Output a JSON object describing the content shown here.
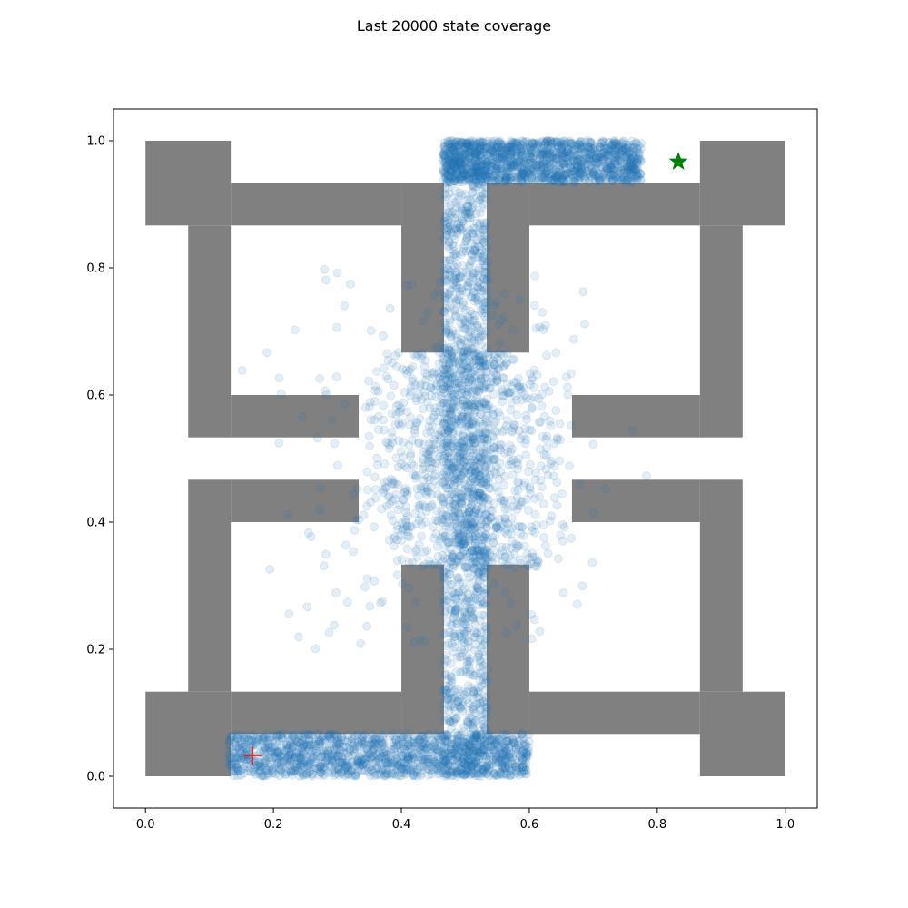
{
  "chart_data": {
    "type": "scatter",
    "title": "Last 20000 state coverage",
    "xlabel": "",
    "ylabel": "",
    "xlim": [
      -0.05,
      1.05
    ],
    "ylim": [
      -0.05,
      1.05
    ],
    "xticks": [
      "0.0",
      "0.2",
      "0.4",
      "0.6",
      "0.8",
      "1.0"
    ],
    "xtick_values": [
      0.0,
      0.2,
      0.4,
      0.6,
      0.8,
      1.0
    ],
    "yticks": [
      "0.0",
      "0.2",
      "0.4",
      "0.6",
      "0.8",
      "1.0"
    ],
    "ytick_values": [
      0.0,
      0.2,
      0.4,
      0.6,
      0.8,
      1.0
    ],
    "grid": false,
    "colors": {
      "walls": "#808080",
      "points": "#1f77b4",
      "goal_marker": "#008000",
      "start_marker": "#d62728"
    },
    "walls": [
      {
        "x0": 0.0,
        "x1": 0.1333,
        "y0": 0.8667,
        "y1": 1.0
      },
      {
        "x0": 0.1333,
        "x1": 0.4,
        "y0": 0.8667,
        "y1": 0.9333
      },
      {
        "x0": 0.0667,
        "x1": 0.1333,
        "y0": 0.5333,
        "y1": 0.8667
      },
      {
        "x0": 0.1333,
        "x1": 0.3333,
        "y0": 0.5333,
        "y1": 0.6
      },
      {
        "x0": 0.4,
        "x1": 0.4667,
        "y0": 0.6667,
        "y1": 0.9333
      },
      {
        "x0": 0.5333,
        "x1": 0.6,
        "y0": 0.6667,
        "y1": 0.9333
      },
      {
        "x0": 0.6,
        "x1": 0.8667,
        "y0": 0.8667,
        "y1": 0.9333
      },
      {
        "x0": 0.8667,
        "x1": 1.0,
        "y0": 0.8667,
        "y1": 1.0
      },
      {
        "x0": 0.8667,
        "x1": 0.9333,
        "y0": 0.5333,
        "y1": 0.8667
      },
      {
        "x0": 0.6667,
        "x1": 0.8667,
        "y0": 0.5333,
        "y1": 0.6
      },
      {
        "x0": 0.0667,
        "x1": 0.1333,
        "y0": 0.1333,
        "y1": 0.4667
      },
      {
        "x0": 0.1333,
        "x1": 0.3333,
        "y0": 0.4,
        "y1": 0.4667
      },
      {
        "x0": 0.0,
        "x1": 0.1333,
        "y0": 0.0,
        "y1": 0.1333
      },
      {
        "x0": 0.1333,
        "x1": 0.4,
        "y0": 0.0667,
        "y1": 0.1333
      },
      {
        "x0": 0.4,
        "x1": 0.4667,
        "y0": 0.0667,
        "y1": 0.3333
      },
      {
        "x0": 0.5333,
        "x1": 0.6,
        "y0": 0.0667,
        "y1": 0.3333
      },
      {
        "x0": 0.6,
        "x1": 0.8667,
        "y0": 0.0667,
        "y1": 0.1333
      },
      {
        "x0": 0.8667,
        "x1": 1.0,
        "y0": 0.0,
        "y1": 0.1333
      },
      {
        "x0": 0.8667,
        "x1": 0.9333,
        "y0": 0.1333,
        "y1": 0.4667
      },
      {
        "x0": 0.6667,
        "x1": 0.8667,
        "y0": 0.4,
        "y1": 0.4667
      }
    ],
    "goal_marker": {
      "x": 0.833,
      "y": 0.967,
      "shape": "star"
    },
    "start_marker": {
      "x": 0.167,
      "y": 0.033,
      "shape": "plus"
    },
    "point_clusters": [
      {
        "region": "central vertical corridor",
        "x_range": [
          0.465,
          0.535
        ],
        "y_range": [
          0.0,
          1.0
        ],
        "density": "very high"
      },
      {
        "region": "top corridor",
        "x_range": [
          0.465,
          0.775
        ],
        "y_range": [
          0.935,
          1.0
        ],
        "density": "very high"
      },
      {
        "region": "bottom corridor",
        "x_range": [
          0.13,
          0.6
        ],
        "y_range": [
          0.0,
          0.067
        ],
        "density": "very high"
      },
      {
        "region": "central open area",
        "x_range": [
          0.34,
          0.67
        ],
        "y_range": [
          0.33,
          0.67
        ],
        "density": "high"
      },
      {
        "region": "mid band spread",
        "x_range": [
          0.14,
          0.8
        ],
        "y_range": [
          0.2,
          0.8
        ],
        "density": "low"
      }
    ]
  }
}
